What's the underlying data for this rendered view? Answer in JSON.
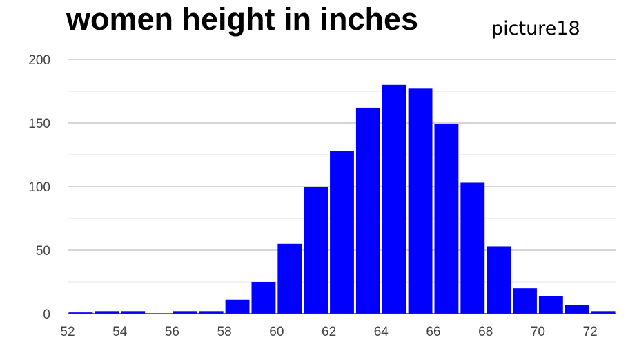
{
  "header": {
    "title": "women height in inches",
    "subtitle": "picture18"
  },
  "colors": {
    "bar": "#0000ff",
    "grid_major": "#c8c8c8",
    "grid_minor": "#e6e6e6",
    "axis": "#333333"
  },
  "chart_data": {
    "type": "bar",
    "title": "women height in inches",
    "subtitle": "picture18",
    "xlabel": "",
    "ylabel": "",
    "xlim": [
      52,
      73
    ],
    "ylim": [
      0,
      200
    ],
    "x_ticks": [
      52,
      54,
      56,
      58,
      60,
      62,
      64,
      66,
      68,
      70,
      72
    ],
    "y_ticks": [
      0,
      50,
      100,
      150,
      200
    ],
    "grid": true,
    "legend": "none",
    "bin_width": 1,
    "bins_start": [
      52,
      53,
      54,
      55,
      56,
      57,
      58,
      59,
      60,
      61,
      62,
      63,
      64,
      65,
      66,
      67,
      68,
      69,
      70,
      71,
      72
    ],
    "values": [
      1,
      2,
      2,
      0,
      2,
      2,
      11,
      25,
      55,
      100,
      128,
      162,
      180,
      177,
      149,
      103,
      53,
      20,
      14,
      7,
      2
    ]
  }
}
